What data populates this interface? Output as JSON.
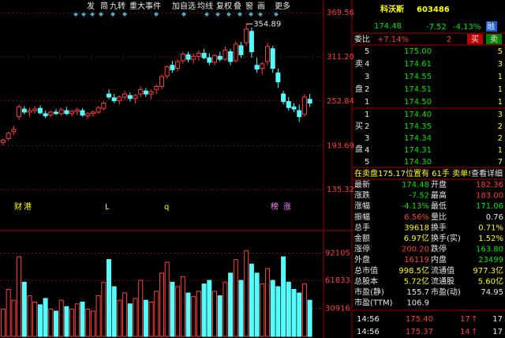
{
  "toolbar": [
    "发",
    "简",
    "九转",
    "重大事件",
    "加自选",
    "均线",
    "复权",
    "叠",
    "窗",
    "画",
    "更多"
  ],
  "chart": {
    "type": "candlestick",
    "candles": [
      {
        "open": 198,
        "high": 203,
        "low": 194,
        "close": 201
      },
      {
        "open": 203,
        "high": 212,
        "low": 200,
        "close": 210
      },
      {
        "open": 212,
        "high": 220,
        "low": 208,
        "close": 215
      },
      {
        "open": 232,
        "high": 248,
        "low": 228,
        "close": 245
      },
      {
        "open": 242,
        "high": 246,
        "low": 235,
        "close": 238
      },
      {
        "open": 238,
        "high": 244,
        "low": 232,
        "close": 240
      },
      {
        "open": 240,
        "high": 246,
        "low": 236,
        "close": 242
      },
      {
        "open": 243,
        "high": 247,
        "low": 235,
        "close": 237
      },
      {
        "open": 236,
        "high": 240,
        "low": 230,
        "close": 233
      },
      {
        "open": 234,
        "high": 240,
        "low": 231,
        "close": 238
      },
      {
        "open": 238,
        "high": 242,
        "low": 234,
        "close": 236
      },
      {
        "open": 236,
        "high": 244,
        "low": 233,
        "close": 241
      },
      {
        "open": 240,
        "high": 245,
        "low": 234,
        "close": 236
      },
      {
        "open": 236,
        "high": 241,
        "low": 232,
        "close": 239
      },
      {
        "open": 239,
        "high": 244,
        "low": 234,
        "close": 241
      },
      {
        "open": 240,
        "high": 243,
        "low": 232,
        "close": 234
      },
      {
        "open": 233,
        "high": 238,
        "low": 229,
        "close": 236
      },
      {
        "open": 236,
        "high": 240,
        "low": 232,
        "close": 238
      },
      {
        "open": 238,
        "high": 246,
        "low": 236,
        "close": 244
      },
      {
        "open": 243,
        "high": 252,
        "low": 240,
        "close": 250
      },
      {
        "open": 262,
        "high": 268,
        "low": 255,
        "close": 258
      },
      {
        "open": 257,
        "high": 262,
        "low": 250,
        "close": 253
      },
      {
        "open": 253,
        "high": 260,
        "low": 248,
        "close": 258
      },
      {
        "open": 258,
        "high": 266,
        "low": 254,
        "close": 262
      },
      {
        "open": 260,
        "high": 264,
        "low": 252,
        "close": 256
      },
      {
        "open": 256,
        "high": 262,
        "low": 250,
        "close": 260
      },
      {
        "open": 262,
        "high": 272,
        "low": 258,
        "close": 268
      },
      {
        "open": 266,
        "high": 270,
        "low": 258,
        "close": 262
      },
      {
        "open": 262,
        "high": 268,
        "low": 255,
        "close": 265
      },
      {
        "open": 268,
        "high": 275,
        "low": 262,
        "close": 272
      },
      {
        "open": 272,
        "high": 288,
        "low": 268,
        "close": 285
      },
      {
        "open": 286,
        "high": 300,
        "low": 282,
        "close": 298
      },
      {
        "open": 300,
        "high": 306,
        "low": 290,
        "close": 294
      },
      {
        "open": 296,
        "high": 308,
        "low": 292,
        "close": 305
      },
      {
        "open": 306,
        "high": 318,
        "low": 302,
        "close": 315
      },
      {
        "open": 314,
        "high": 318,
        "low": 304,
        "close": 308
      },
      {
        "open": 308,
        "high": 316,
        "low": 302,
        "close": 312
      },
      {
        "open": 312,
        "high": 320,
        "low": 306,
        "close": 316
      },
      {
        "open": 316,
        "high": 322,
        "low": 308,
        "close": 310
      },
      {
        "open": 310,
        "high": 316,
        "low": 300,
        "close": 304
      },
      {
        "open": 304,
        "high": 315,
        "low": 300,
        "close": 313
      },
      {
        "open": 312,
        "high": 318,
        "low": 305,
        "close": 308
      },
      {
        "open": 308,
        "high": 325,
        "low": 306,
        "close": 320
      },
      {
        "open": 318,
        "high": 322,
        "low": 300,
        "close": 305
      },
      {
        "open": 306,
        "high": 332,
        "low": 304,
        "close": 328
      },
      {
        "open": 326,
        "high": 331,
        "low": 310,
        "close": 314
      },
      {
        "open": 330,
        "high": 354.89,
        "low": 326,
        "close": 348
      },
      {
        "open": 345,
        "high": 350,
        "low": 310,
        "close": 318
      },
      {
        "open": 300,
        "high": 310,
        "low": 290,
        "close": 295
      },
      {
        "open": 296,
        "high": 305,
        "low": 288,
        "close": 302
      },
      {
        "open": 305,
        "high": 330,
        "low": 300,
        "close": 325
      },
      {
        "open": 322,
        "high": 326,
        "low": 290,
        "close": 296
      },
      {
        "open": 290,
        "high": 296,
        "low": 270,
        "close": 278
      },
      {
        "open": 262,
        "high": 266,
        "low": 248,
        "close": 252
      },
      {
        "open": 252,
        "high": 258,
        "low": 240,
        "close": 244
      },
      {
        "open": 245,
        "high": 250,
        "low": 238,
        "close": 242
      },
      {
        "open": 240,
        "high": 248,
        "low": 225,
        "close": 232
      },
      {
        "open": 235,
        "high": 262,
        "low": 232,
        "close": 258
      },
      {
        "open": 255,
        "high": 262,
        "low": 245,
        "close": 250
      }
    ],
    "volumes": [
      30000,
      52000,
      40000,
      88000,
      60000,
      45000,
      38000,
      35000,
      42000,
      30000,
      28000,
      40000,
      33000,
      30000,
      36000,
      38000,
      30000,
      28000,
      45000,
      60000,
      85000,
      55000,
      40000,
      48000,
      36000,
      42000,
      62000,
      40000,
      38000,
      50000,
      70000,
      82000,
      60000,
      55000,
      66000,
      48000,
      44000,
      50000,
      58000,
      62000,
      50000,
      45000,
      60000,
      70000,
      85000,
      62000,
      95000,
      80000,
      70000,
      58000,
      75000,
      62000,
      55000,
      88000,
      60000,
      52000,
      48000,
      58000,
      40000
    ],
    "ylim": [
      104,
      374
    ],
    "yticks": [
      369.56,
      {
        "value": 311.2,
        "label": "311.20"
      },
      252.84,
      193.69,
      135.32
    ],
    "vlim": [
      0,
      110000
    ],
    "vticks": [
      92105,
      61833,
      30916
    ],
    "event_markers": [
      "财",
      "港",
      "L",
      "q",
      "榜",
      "涨"
    ]
  },
  "quote": {
    "name": "科沃斯",
    "code": "603486",
    "price": "174.48",
    "change": "-7.52",
    "change_pct": "-4.13%",
    "badge": "融",
    "ratio_label": "委比",
    "ratio": "+7.14%",
    "ratio_diff": "2",
    "buy": "买",
    "sell": "卖"
  },
  "order_book": {
    "sell_label": [
      "卖",
      "盘"
    ],
    "buy_label": [
      "买",
      "盘"
    ],
    "sell": [
      [
        "5",
        "175.00",
        "5"
      ],
      [
        "4",
        "174.61",
        "3"
      ],
      [
        "3",
        "174.55",
        "1"
      ],
      [
        "2",
        "174.51",
        "1"
      ],
      [
        "1",
        "174.50",
        "1"
      ]
    ],
    "buy": [
      [
        "1",
        "174.40",
        "3"
      ],
      [
        "2",
        "174.35",
        "2"
      ],
      [
        "3",
        "174.34",
        "2"
      ],
      [
        "4",
        "174.31",
        "1"
      ],
      [
        "5",
        "174.30",
        "7"
      ]
    ]
  },
  "notice": {
    "text": "在卖盘175.17位置有 61手 卖单!",
    "link": "查看详细"
  },
  "stats": [
    [
      "最新",
      "174.48",
      "开盘",
      "182.36"
    ],
    [
      "涨跌",
      "-7.52",
      "最高",
      "183.00"
    ],
    [
      "涨幅",
      "-4.13%",
      "最低",
      "171.06"
    ],
    [
      "振幅",
      "6.56%",
      "量比",
      "0.76"
    ],
    [
      "总手",
      "39618",
      "换手",
      "0.71%"
    ],
    [
      "金额",
      "6.97亿",
      "换手(实)",
      "1.52%"
    ],
    [
      "涨停",
      "200.20",
      "跌停",
      "163.80"
    ],
    [
      "外盘",
      "16119",
      "内盘",
      "23499"
    ],
    [
      "总市值",
      "998.5亿",
      "流通值",
      "977.3亿"
    ],
    [
      "总股本",
      "5.72亿",
      "流通股",
      "5.60亿"
    ],
    [
      "市盈(静)",
      "155.7",
      "市盈(动)",
      "74.95"
    ],
    [
      "市盈(TTM)",
      "106.9"
    ]
  ],
  "trades": [
    [
      "14:56",
      "175.40",
      "17",
      "↑",
      "17"
    ],
    [
      "14:56",
      "175.37",
      "14",
      "↑",
      "17"
    ]
  ]
}
